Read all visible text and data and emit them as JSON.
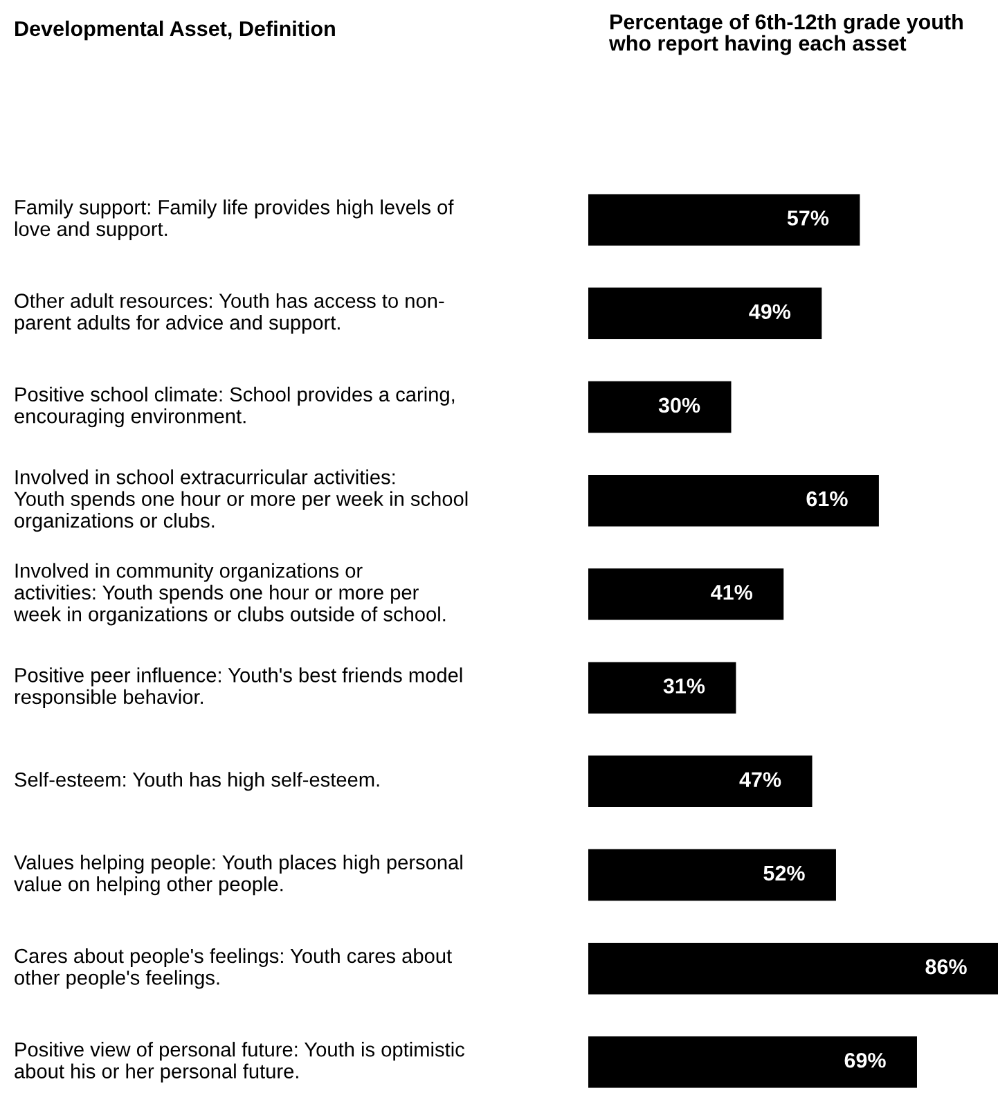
{
  "chart_data": {
    "type": "bar",
    "orientation": "horizontal",
    "annotations": [
      "Developmental Asset, Definition"
    ],
    "title": "Percentage of 6th-12th grade youth\nwho report having each asset",
    "categories": [
      "Family support: Family life provides high levels of\nlove and support.",
      "Other adult resources: Youth has access to non-\nparent adults for advice and support.",
      "Positive school climate: School provides a caring,\nencouraging environment.",
      "Involved in school extracurricular activities:\nYouth spends one hour or more per week in school\norganizations or clubs.",
      "Involved in community organizations or\nactivities: Youth spends one hour or more per\nweek in organizations or clubs outside of school.",
      "Positive peer influence: Youth's best friends model\nresponsible behavior.",
      "Self-esteem: Youth has high self-esteem.",
      "Values helping people: Youth places high personal\nvalue on helping other people.",
      "Cares about people's feelings: Youth cares about\nother people's feelings.",
      "Positive view of personal future: Youth is optimistic\nabout his or her personal future."
    ],
    "values": [
      57,
      49,
      30,
      61,
      41,
      31,
      47,
      52,
      86,
      69
    ],
    "value_labels": [
      "57%",
      "49%",
      "30%",
      "61%",
      "41%",
      "31%",
      "47%",
      "52%",
      "86%",
      "69%"
    ],
    "color": "#000000"
  }
}
